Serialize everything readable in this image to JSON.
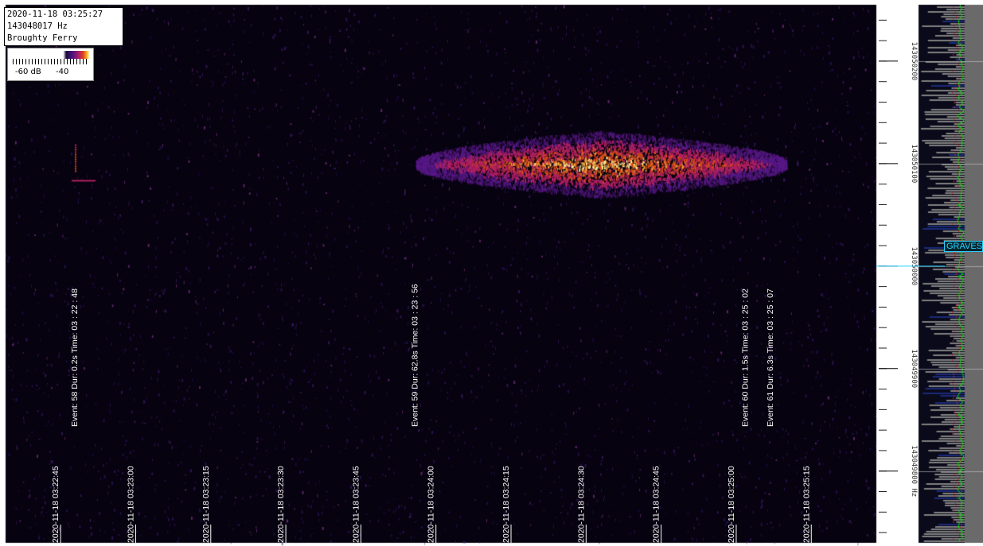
{
  "header": {
    "timestamp": "2020-11-18 03:25:27",
    "frequency": "143048017 Hz",
    "location": "Broughty Ferry"
  },
  "db_scale": {
    "label_low": "-60 dB",
    "label_high": "-40"
  },
  "chart_data": {
    "type": "heatmap",
    "title": "",
    "x_axis": {
      "tick_labels": [
        "2020-11-18 03:22:45",
        "2020-11-18 03:23:00",
        "2020-11-18 03:23:15",
        "2020-11-18 03:23:30",
        "2020-11-18 03:23:45",
        "2020-11-18 03:24:00",
        "2020-11-18 03:24:15",
        "2020-11-18 03:24:30",
        "2020-11-18 03:24:45",
        "2020-11-18 03:25:00",
        "2020-11-18 03:25:15"
      ]
    },
    "y_axis": {
      "tick_labels": [
        "143050200",
        "143050100",
        "143050000",
        "143049900",
        "143049800 Hz"
      ],
      "tick_values": [
        143050200,
        143050100,
        143050000,
        143049900,
        143049800
      ],
      "range": [
        143049730,
        143050255
      ]
    },
    "marker": {
      "label": "GRAVES",
      "frequency": 143050000,
      "color": "#2ad0ff"
    },
    "events": [
      {
        "text": "Event: 58  Dur: 0.2s  Time: 03 : 22 : 48",
        "number": 58,
        "duration_s": 0.2,
        "time": "03:22:48"
      },
      {
        "text": "Event: 59  Dur: 62.8s  Time: 03 : 23 : 56",
        "number": 59,
        "duration_s": 62.8,
        "time": "03:23:56"
      },
      {
        "text": "Event: 60  Dur: 1.5s  Time: 03 : 25 : 02",
        "number": 60,
        "duration_s": 1.5,
        "time": "03:25:02"
      },
      {
        "text": "Event: 61  Dur: 6.3s  Time: 03 : 25 : 07",
        "number": 61,
        "duration_s": 6.3,
        "time": "03:25:07"
      }
    ],
    "signals": [
      {
        "start": "03:22:48",
        "end": "03:22:48",
        "frequency": 143050105,
        "intensity": 0.5
      },
      {
        "start": "03:23:56",
        "end": "03:25:10",
        "frequency": 143050100,
        "intensity": 1.0
      }
    ],
    "colors": {
      "background": "#06020f",
      "signal_low": "#5a1a8a",
      "signal_mid": "#d84a1a",
      "signal_high": "#fff0a0",
      "spectrum_line": "#00e000",
      "spectrum_noise": "#cc3333"
    }
  }
}
